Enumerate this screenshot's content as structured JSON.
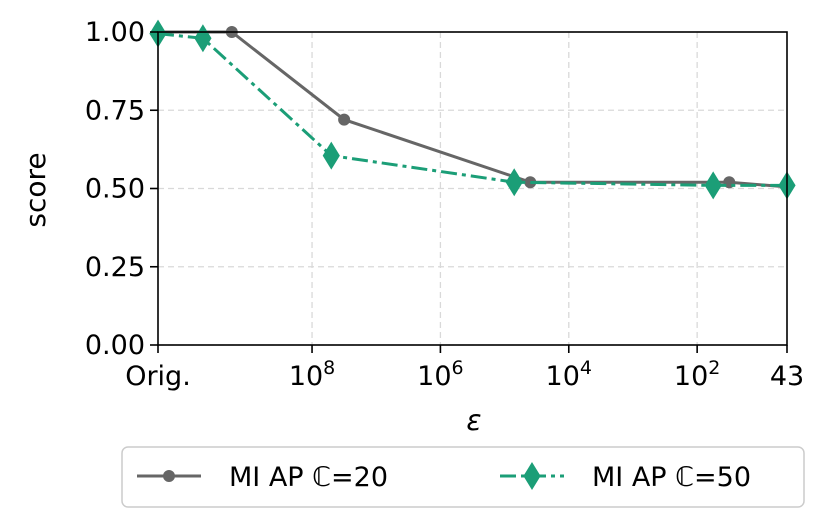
{
  "chart_data": {
    "type": "line",
    "xlabel": "ε",
    "ylabel": "score",
    "ylim": [
      0,
      1
    ],
    "y_ticks": [
      "0.00",
      "0.25",
      "0.50",
      "0.75",
      "1.00"
    ],
    "y_tick_values": [
      0,
      0.25,
      0.5,
      0.75,
      1.0
    ],
    "x_ticks": [
      {
        "label": "Orig.",
        "base": "Orig.",
        "exp": ""
      },
      {
        "label": "10^8",
        "base": "10",
        "exp": "8"
      },
      {
        "label": "10^6",
        "base": "10",
        "exp": "6"
      },
      {
        "label": "10^4",
        "base": "10",
        "exp": "4"
      },
      {
        "label": "10^2",
        "base": "10",
        "exp": "2"
      },
      {
        "label": "43",
        "base": "43",
        "exp": ""
      }
    ],
    "x_tick_positions": [
      0,
      2.4,
      4.4,
      6.4,
      8.4,
      9.8
    ],
    "x_range": [
      0,
      9.8
    ],
    "grid": true,
    "legend_position": "bottom",
    "series": [
      {
        "name": "MI AP ℂ=20",
        "color": "#666666",
        "marker": "circle",
        "line_style": "solid",
        "x": [
          0,
          1.15,
          2.9,
          5.8,
          8.9,
          9.8
        ],
        "y": [
          1.0,
          1.0,
          0.72,
          0.52,
          0.52,
          0.505
        ]
      },
      {
        "name": "MI AP ℂ=50",
        "color": "#1b9e77",
        "marker": "diamond",
        "line_style": "dashdot",
        "x": [
          0,
          0.7,
          2.7,
          5.55,
          8.65,
          9.8
        ],
        "y": [
          0.995,
          0.98,
          0.605,
          0.52,
          0.51,
          0.51
        ]
      }
    ]
  }
}
